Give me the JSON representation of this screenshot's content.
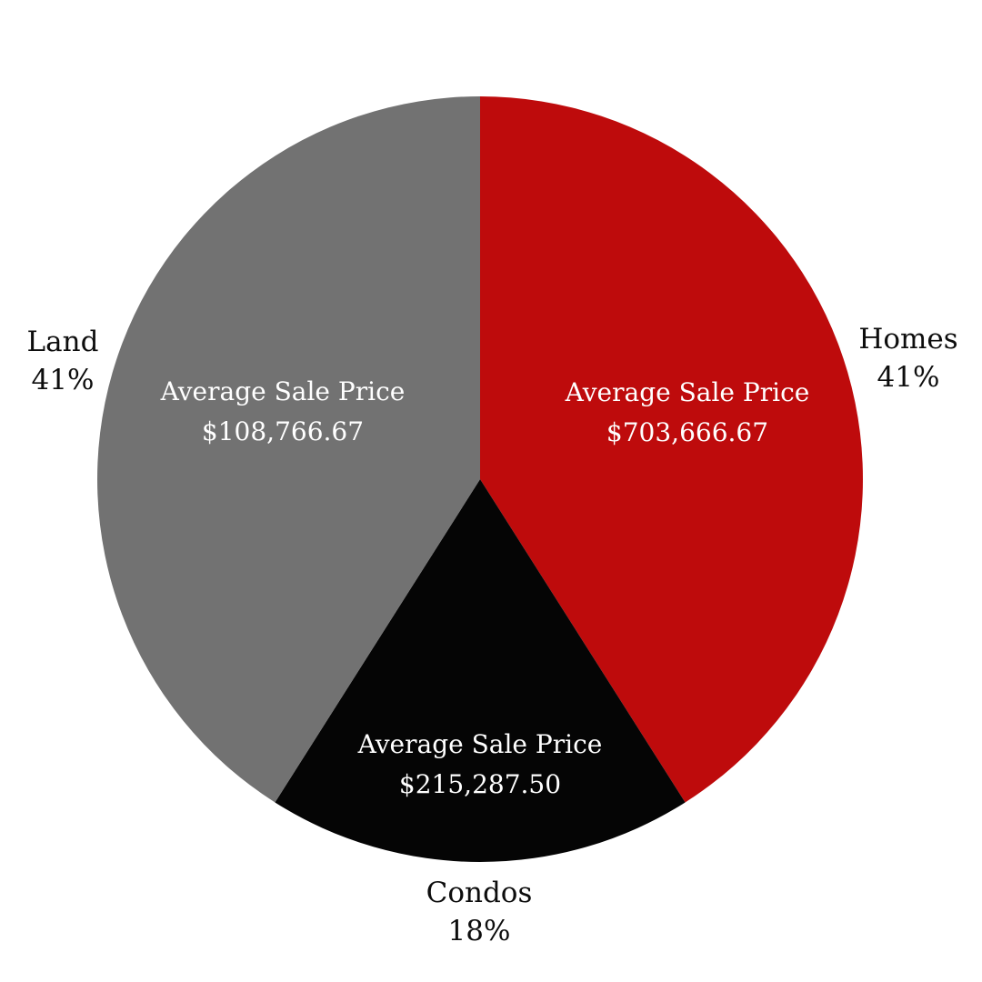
{
  "chart_data": {
    "type": "pie",
    "title": "",
    "legend": "none",
    "start_angle_deg": 0,
    "direction": "clockwise",
    "background_color": "#ffffff",
    "outside_label_color": "#0d0d0d",
    "inside_label_color": "#ffffff",
    "slices": [
      {
        "label": "Homes",
        "pct": 41,
        "pct_label": "41%",
        "inner_label": "Average Sale Price",
        "value_label": "$703,666.67",
        "value": 703666.67,
        "color": "#BE0B0C"
      },
      {
        "label": "Condos",
        "pct": 18,
        "pct_label": "18%",
        "inner_label": "Average Sale Price",
        "value_label": "$215,287.50",
        "value": 215287.5,
        "color": "#050505"
      },
      {
        "label": "Land",
        "pct": 41,
        "pct_label": "41%",
        "inner_label": "Average Sale Price",
        "value_label": "$108,766.67",
        "value": 108766.67,
        "color": "#727272"
      }
    ]
  }
}
